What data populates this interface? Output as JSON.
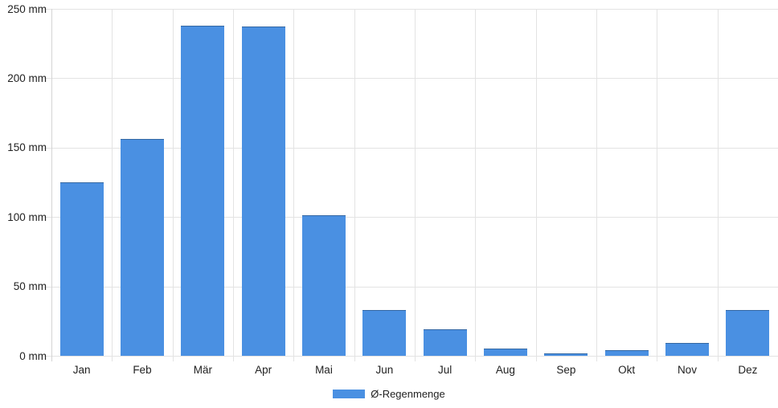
{
  "chart_data": {
    "type": "bar",
    "title": "",
    "categories": [
      "Jan",
      "Feb",
      "Mär",
      "Apr",
      "Mai",
      "Jun",
      "Jul",
      "Aug",
      "Sep",
      "Okt",
      "Nov",
      "Dez"
    ],
    "series": [
      {
        "name": "Ø-Regenmenge",
        "values": [
          125,
          156,
          238,
          237,
          101,
          33,
          19,
          5,
          2,
          4,
          9,
          33
        ]
      }
    ],
    "xlabel": "",
    "ylabel": "",
    "ylim": [
      0,
      250
    ],
    "y_ticks": [
      0,
      50,
      100,
      150,
      200,
      250
    ],
    "y_tick_labels": [
      "0 mm",
      "50 mm",
      "100 mm",
      "150 mm",
      "200 mm",
      "250 mm"
    ],
    "grid": true,
    "legend_position": "bottom"
  },
  "legend": {
    "label": "Ø-Regenmenge"
  },
  "colors": {
    "bar": "#4a90e2",
    "grid": "#e3e3e3",
    "axis_line": "#d4d4d4",
    "text": "#222222",
    "background": "#ffffff"
  }
}
